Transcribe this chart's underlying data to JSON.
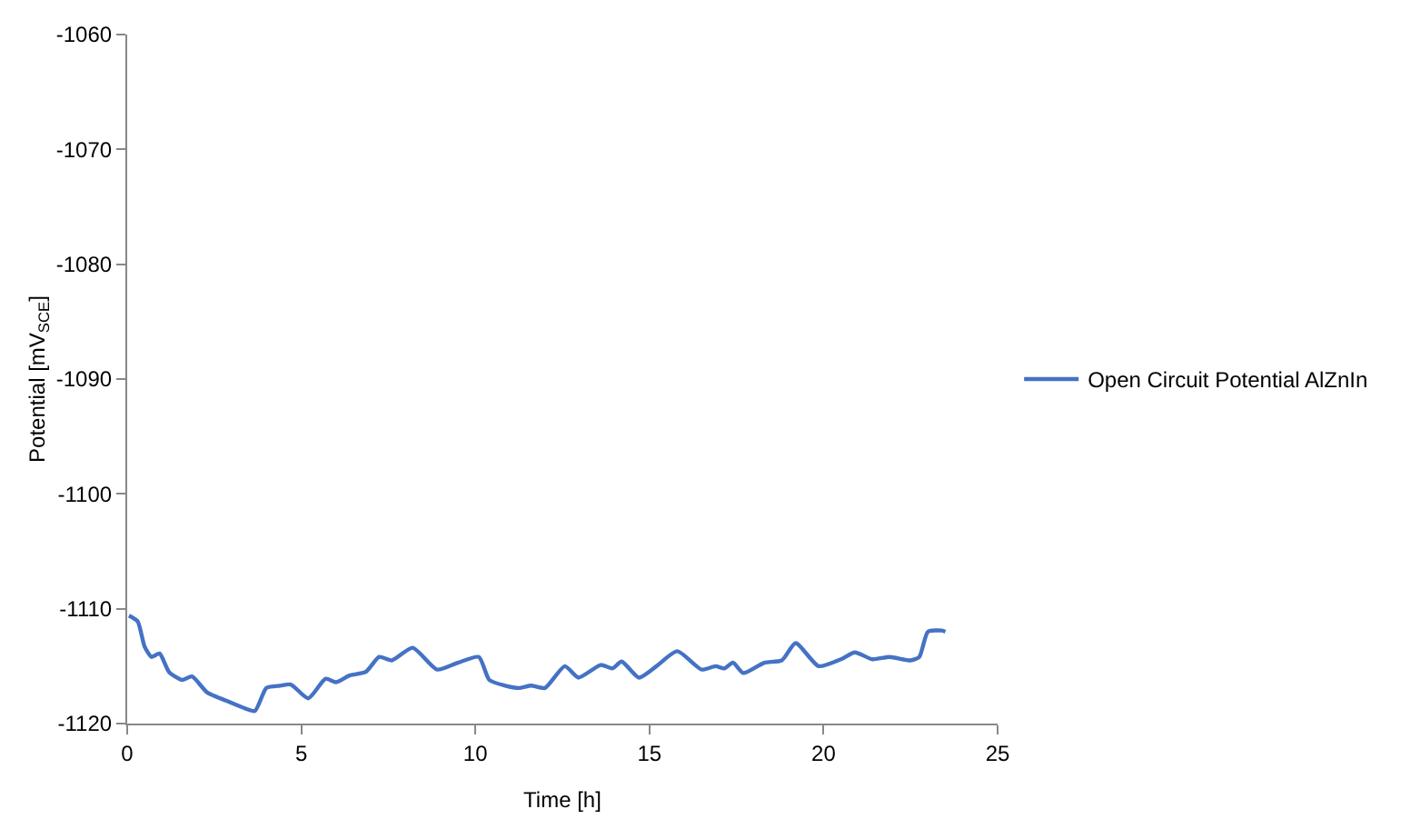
{
  "chart_data": {
    "type": "line",
    "xlabel": "Time [h]",
    "ylabel": "Potential [mV$_{SCE}$]",
    "xlim": [
      0,
      25
    ],
    "xticks": [
      0,
      5,
      10,
      15,
      20,
      25
    ],
    "ylim": [
      -1120,
      -1060
    ],
    "yticks": [
      -1120,
      -1110,
      -1100,
      -1090,
      -1080,
      -1070,
      -1060
    ],
    "grid": false,
    "legend": "right",
    "marker": "none",
    "line_style": "solid",
    "x": [
      0.05,
      0.3,
      0.5,
      0.7,
      0.93,
      1.2,
      1.57,
      1.86,
      2.3,
      2.84,
      3.4,
      3.67,
      4.0,
      4.4,
      4.7,
      5.2,
      5.7,
      6.0,
      6.4,
      6.85,
      7.24,
      7.6,
      8.2,
      8.9,
      9.5,
      10.1,
      10.4,
      10.86,
      11.25,
      11.6,
      12.0,
      12.57,
      12.96,
      13.6,
      13.94,
      14.2,
      14.7,
      15.2,
      15.8,
      16.5,
      16.9,
      17.15,
      17.4,
      17.7,
      18.3,
      18.8,
      19.2,
      19.86,
      20.5,
      20.9,
      21.4,
      21.9,
      22.5,
      22.75,
      23.0,
      23.4,
      23.5
    ],
    "series": [
      {
        "name": "Open Circuit Potential AlZnIn",
        "color": "#4472c4",
        "values": [
          -1110.6,
          -1111.1,
          -1113.3,
          -1114.2,
          -1113.9,
          -1115.5,
          -1116.2,
          -1115.9,
          -1117.3,
          -1118.0,
          -1118.7,
          -1118.9,
          -1116.9,
          -1116.7,
          -1116.6,
          -1117.8,
          -1116.1,
          -1116.4,
          -1115.8,
          -1115.5,
          -1114.2,
          -1114.5,
          -1113.4,
          -1115.3,
          -1114.7,
          -1114.2,
          -1116.2,
          -1116.7,
          -1116.9,
          -1116.7,
          -1116.9,
          -1115.0,
          -1116.0,
          -1114.9,
          -1115.2,
          -1114.6,
          -1116.0,
          -1115.0,
          -1113.7,
          -1115.3,
          -1115.0,
          -1115.2,
          -1114.7,
          -1115.6,
          -1114.7,
          -1114.5,
          -1113.0,
          -1115.0,
          -1114.4,
          -1113.8,
          -1114.4,
          -1114.2,
          -1114.5,
          -1114.2,
          -1112.0,
          -1111.9,
          -1112.0
        ]
      }
    ]
  }
}
